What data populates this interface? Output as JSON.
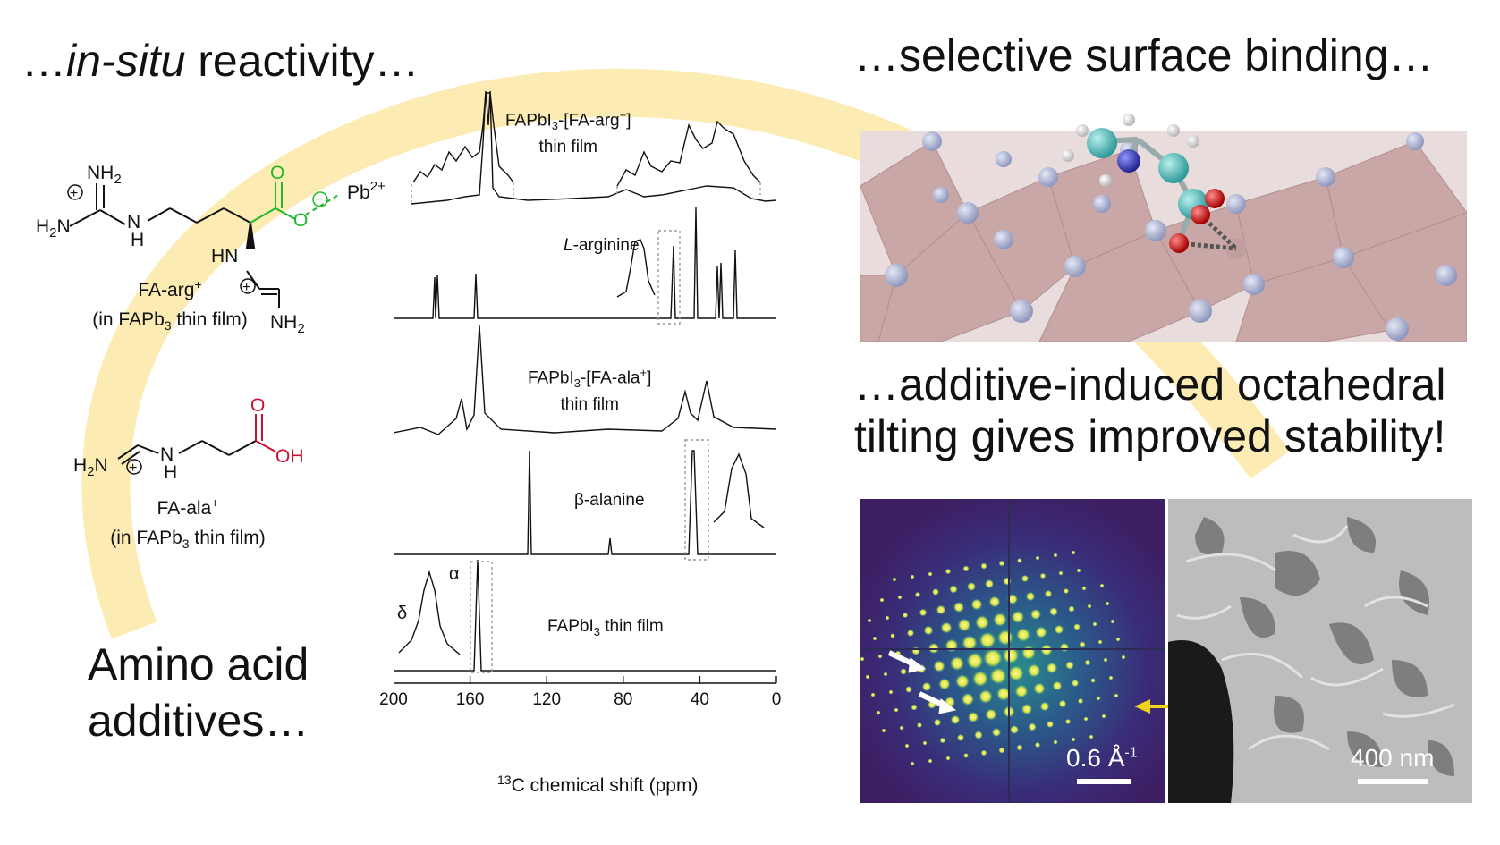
{
  "headlines": {
    "reactivity_pre": "…",
    "reactivity_italic": "in-situ",
    "reactivity_post": " reactivity…",
    "binding": "…selective surface binding…",
    "tilting_line1": "…additive-induced octahedral",
    "tilting_line2": "tilting gives improved stability!",
    "amino_line1": "Amino acid",
    "amino_line2": "additives…"
  },
  "molecules": {
    "arg": {
      "name": "FA-arg",
      "charge": "+",
      "context_pre": "(in FAPb",
      "context_sub": "3",
      "context_post": " thin film)",
      "pb": "Pb",
      "pb_charge": "2+",
      "nh2_top": "NH",
      "nh2_top_sub": "2",
      "h2n": "H",
      "h2n_sub": "2",
      "h2n_n": "N",
      "nh_h": "H",
      "hn": "HN",
      "nh2_bot": "NH",
      "nh2_bot_sub": "2",
      "o_top": "O",
      "o_minus": "O",
      "plus": "+",
      "minus": "−"
    },
    "ala": {
      "name": "FA-ala",
      "charge": "+",
      "context_pre": "(in FAPb",
      "context_sub": "3",
      "context_post": " thin film)",
      "h2n": "H",
      "h2n_sub": "2",
      "h2n_n": "N",
      "n": "N",
      "h": "H",
      "o": "O",
      "oh": "OH",
      "plus": "+"
    }
  },
  "nmr": {
    "spectra": [
      {
        "label_line1_pre": "FAPbI",
        "label_sub": "3",
        "label_mid": "-[FA-arg",
        "label_sup": "+",
        "label_post": "]",
        "label_line2": "thin film"
      },
      {
        "label_italic": "L",
        "label_rest": "-arginine"
      },
      {
        "label_line1_pre": "FAPbI",
        "label_sub": "3",
        "label_mid": "-[FA-ala",
        "label_sup": "+",
        "label_post": "]",
        "label_line2": "thin film"
      },
      {
        "label_rest": "β-alanine"
      },
      {
        "label_line1_pre": "FAPbI",
        "label_sub": "3",
        "label_post": " thin film"
      }
    ],
    "peak_labels": {
      "alpha": "α",
      "delta": "δ"
    },
    "axis": {
      "ticks": [
        200,
        160,
        120,
        80,
        40,
        0
      ],
      "xlabel_sup": "13",
      "xlabel": "C chemical shift (ppm)"
    }
  },
  "diffraction": {
    "scale": "0.6 Å",
    "scale_sup": "-1"
  },
  "sem": {
    "scale": "400 nm"
  },
  "colors": {
    "arc": "#fbe7a6",
    "carboxylate": "#1fb82a",
    "acid": "#c8102e",
    "arrow": "#f0d21a",
    "octahedra": "#c9a7a7",
    "iodide": "#a9b1cf",
    "carbon": "#46b8b8",
    "nitrogen": "#3a3fc0",
    "oxygen": "#d01515"
  }
}
